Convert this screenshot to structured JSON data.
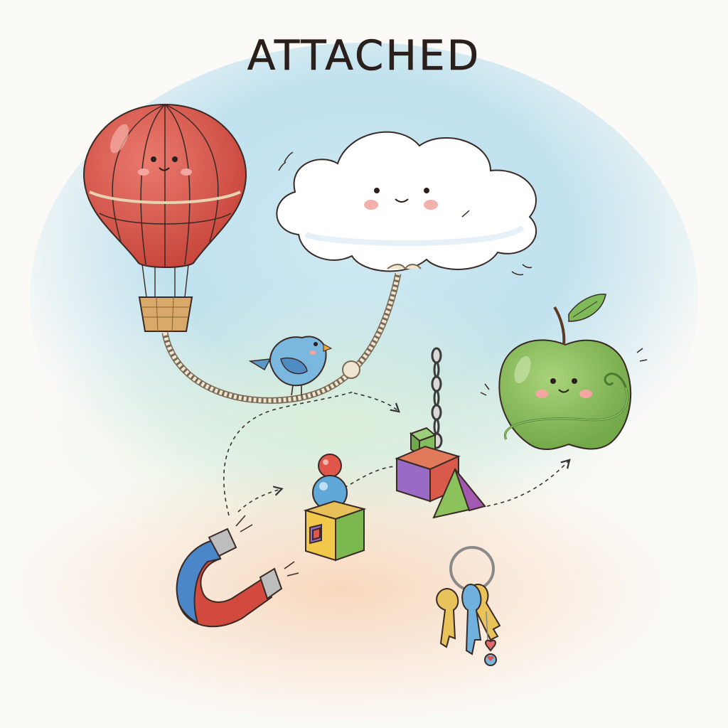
{
  "title": "ATTACHED",
  "colors": {
    "balloon": "#d9574c",
    "cloud": "#ffffff",
    "bird": "#6fb1dc",
    "apple": "#8cbf5a",
    "magnet_red": "#d24a3e",
    "magnet_blue": "#4a86c8",
    "rope": "#e8dcc3",
    "watercolor_sky": "#bfe2ef",
    "watercolor_warm": "#f6d9c0"
  },
  "icons": [
    "hot-air-balloon-icon",
    "cloud-icon",
    "bird-icon",
    "apple-icon",
    "chain-icon",
    "blocks-icon",
    "stacked-balls-icon",
    "magnet-icon",
    "keys-icon"
  ]
}
